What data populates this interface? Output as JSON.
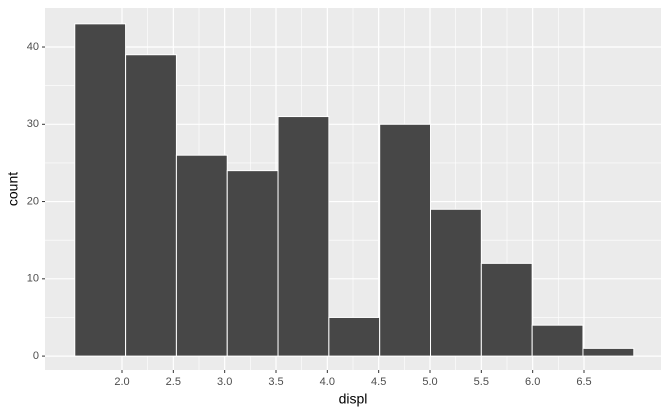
{
  "chart_data": {
    "type": "histogram",
    "x_label": "displ",
    "y_label": "count",
    "bins": [
      1.54,
      2.035,
      2.53,
      3.025,
      3.52,
      4.015,
      4.51,
      5.005,
      5.5,
      5.995,
      6.49,
      6.985
    ],
    "values": [
      43,
      39,
      26,
      24,
      31,
      5,
      30,
      19,
      12,
      4,
      1
    ],
    "color": "#474747",
    "edge_color": "#ffffff",
    "xlim": [
      1.25,
      7.25
    ],
    "xticks": [
      {
        "value": 2,
        "label": "2.0"
      },
      {
        "value": 2.5,
        "label": "2.5"
      },
      {
        "value": 3,
        "label": "3.0"
      },
      {
        "value": 3.5,
        "label": "3.5"
      },
      {
        "value": 4,
        "label": "4.0"
      },
      {
        "value": 4.5,
        "label": "4.5"
      },
      {
        "value": 5,
        "label": "5.0"
      },
      {
        "value": 5.5,
        "label": "5.5"
      },
      {
        "value": 6,
        "label": "6.0"
      },
      {
        "value": 6.5,
        "label": "6.5"
      }
    ],
    "ylim": [
      -1.8,
      45.05
    ],
    "yticks": [
      0,
      10,
      20,
      30,
      40
    ],
    "grid": true
  }
}
